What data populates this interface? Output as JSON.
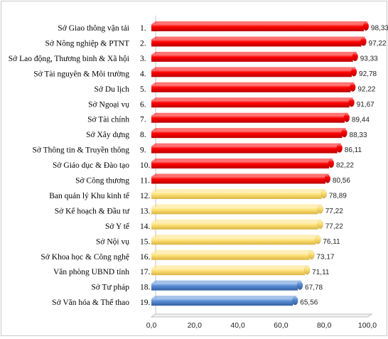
{
  "chart_data": {
    "type": "bar",
    "orientation": "horizontal",
    "style": "3d-cylinder",
    "xlim": [
      0,
      100
    ],
    "xticks": [
      "0,0",
      "20,0",
      "40,0",
      "60,0",
      "80,0",
      "100,0"
    ],
    "grid": false,
    "legend": "none",
    "colors": {
      "red": "#ff0000",
      "yellow": "#ffe27a",
      "blue": "#5b8fd6"
    },
    "items": [
      {
        "name": "Sở Giao thông vận tải",
        "rank": "1.",
        "value": 98.33,
        "label": "98,33",
        "color": "red"
      },
      {
        "name": "Sở Nông nghiệp & PTNT",
        "rank": "2.",
        "value": 97.22,
        "label": "97,22",
        "color": "red"
      },
      {
        "name": "Sở Lao động, Thương binh & Xã hội",
        "rank": "3.",
        "value": 93.33,
        "label": "93,33",
        "color": "red"
      },
      {
        "name": "Sở Tài nguyên & Môi trường",
        "rank": "4.",
        "value": 92.78,
        "label": "92,78",
        "color": "red"
      },
      {
        "name": "Sở Du lịch",
        "rank": "5.",
        "value": 92.22,
        "label": "92,22",
        "color": "red"
      },
      {
        "name": "Sở Ngoại vụ",
        "rank": "6.",
        "value": 91.67,
        "label": "91,67",
        "color": "red"
      },
      {
        "name": "Sở Tài chính",
        "rank": "7.",
        "value": 89.44,
        "label": "89,44",
        "color": "red"
      },
      {
        "name": "Sở Xây dựng",
        "rank": "8.",
        "value": 88.33,
        "label": "88,33",
        "color": "red"
      },
      {
        "name": "Sở Thông tin & Truyền thông",
        "rank": "9.",
        "value": 86.11,
        "label": "86,11",
        "color": "red"
      },
      {
        "name": "Sở Giáo dục & Đào tạo",
        "rank": "10.",
        "value": 82.22,
        "label": "82,22",
        "color": "red"
      },
      {
        "name": "Sở Công thương",
        "rank": "11.",
        "value": 80.56,
        "label": "80,56",
        "color": "red"
      },
      {
        "name": "Ban quản lý Khu kinh tế",
        "rank": "12.",
        "value": 78.89,
        "label": "78,89",
        "color": "yellow"
      },
      {
        "name": "Sở Kế hoạch & Đầu tư",
        "rank": "13.",
        "value": 77.22,
        "label": "77,22",
        "color": "yellow"
      },
      {
        "name": "Sở Y tế",
        "rank": "14.",
        "value": 77.22,
        "label": "77,22",
        "color": "yellow"
      },
      {
        "name": "Sở Nội vụ",
        "rank": "15.",
        "value": 76.11,
        "label": "76,11",
        "color": "yellow"
      },
      {
        "name": "Sở Khoa học & Công nghệ",
        "rank": "16.",
        "value": 73.17,
        "label": "73,17",
        "color": "yellow"
      },
      {
        "name": "Văn phòng UBND tỉnh",
        "rank": "17.",
        "value": 71.11,
        "label": "71,11",
        "color": "yellow"
      },
      {
        "name": "Sở Tư pháp",
        "rank": "18.",
        "value": 67.78,
        "label": "67,78",
        "color": "blue"
      },
      {
        "name": "Sở Văn hóa & Thể thao",
        "rank": "19.",
        "value": 65.56,
        "label": "65,56",
        "color": "blue"
      }
    ]
  }
}
